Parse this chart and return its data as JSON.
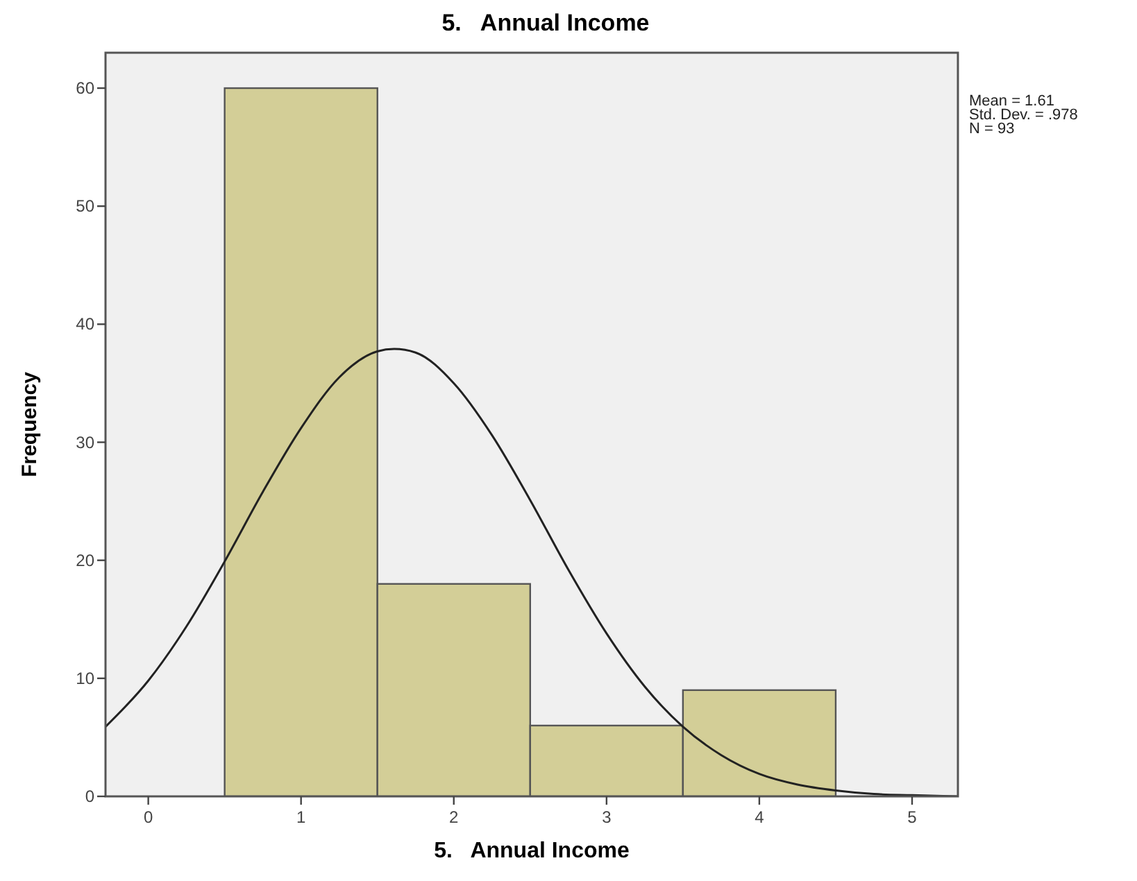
{
  "chart_data": {
    "type": "histogram",
    "title": "5.   Annual Income",
    "xlabel": "5.   Annual Income",
    "ylabel": "Frequency",
    "bins": [
      0.5,
      1.5,
      2.5,
      3.5,
      4.5
    ],
    "values": [
      60,
      18,
      6,
      9
    ],
    "color": "#d3ce97",
    "series": [
      {
        "type": "line",
        "color": "#222222",
        "x": [
          -0.28,
          0,
          0.25,
          0.5,
          0.75,
          1,
          1.25,
          1.5,
          1.61,
          1.75,
          2,
          2.25,
          2.5,
          2.75,
          3,
          3.25,
          3.5,
          3.75,
          4,
          4.25,
          4.5,
          4.75,
          5,
          5.3
        ],
        "values": [
          5.9,
          9.8,
          14.4,
          19.9,
          25.8,
          31.2,
          35.5,
          37.7,
          37.9,
          37.6,
          35.0,
          30.6,
          25.1,
          19.2,
          13.8,
          9.3,
          5.9,
          3.5,
          1.9,
          1.0,
          0.5,
          0.2,
          0.1,
          0.0
        ]
      }
    ],
    "xlim": [
      -0.28,
      5.3
    ],
    "xticks": [
      0,
      1,
      2,
      3,
      4,
      5
    ],
    "ylim": [
      0,
      63
    ],
    "yticks": [
      0,
      10,
      20,
      30,
      40,
      50,
      60
    ],
    "grid": false,
    "annotations": [
      "Mean = 1.61",
      "Std. Dev. = .978",
      "N = 93"
    ]
  }
}
